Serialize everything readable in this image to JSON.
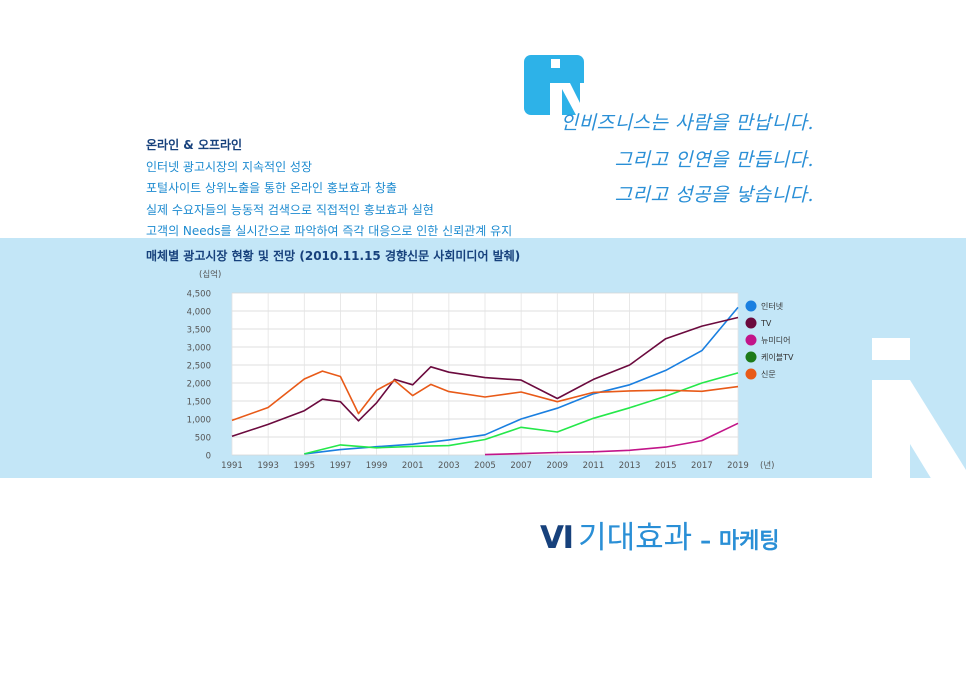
{
  "slogan": [
    "인비즈니스는 사람을 만납니다.",
    "그리고 인연을 만듭니다.",
    "그리고 성공을 낳습니다."
  ],
  "bullets": [
    "온라인 & 오프라인",
    "인터넷 광고시장의 지속적인 성장",
    "포털사이트 상위노출을 통한 온라인 홍보효과 창출",
    "실제 수요자들의 능동적 검색으로 직접적인 홍보효과 실현",
    "고객의 Needs를 실시간으로 파악하여 즉각 대응으로 인한 신뢰관계 유지"
  ],
  "footer": {
    "number": "Ⅵ",
    "title": "기대효과",
    "subtitle": "– 마케팅"
  },
  "colors": {
    "brand_blue": "#2a8fd6",
    "navy": "#17417c",
    "band": "#c3e6f7"
  },
  "chart_data": {
    "type": "line",
    "title": "매체별 광고시장 현황 및 전망 (2010.11.15 경향신문 사회미디어 발췌)",
    "unit_label": "(십억)",
    "x_unit_label": "(년)",
    "x_ticks": [
      1991,
      1993,
      1995,
      1997,
      1999,
      2001,
      2003,
      2005,
      2007,
      2009,
      2011,
      2013,
      2015,
      2017,
      2019
    ],
    "y_ticks": [
      0,
      500,
      1000,
      1500,
      2000,
      2500,
      3000,
      3500,
      4000,
      4500
    ],
    "y_tick_labels": [
      "0",
      "500",
      "1,000",
      "1,500",
      "2,000",
      "2,500",
      "3,000",
      "3,500",
      "4,000",
      "4,500"
    ],
    "xlim": [
      1991,
      2019
    ],
    "ylim": [
      0,
      4500
    ],
    "grid": true,
    "legend_position": "right",
    "series": [
      {
        "name": "인터넷",
        "color": "#1a7fe0",
        "points": [
          [
            1995,
            30
          ],
          [
            1997,
            150
          ],
          [
            1999,
            230
          ],
          [
            2001,
            300
          ],
          [
            2003,
            420
          ],
          [
            2005,
            560
          ],
          [
            2007,
            1000
          ],
          [
            2009,
            1300
          ],
          [
            2011,
            1700
          ],
          [
            2013,
            1950
          ],
          [
            2015,
            2350
          ],
          [
            2017,
            2900
          ],
          [
            2019,
            4100
          ]
        ]
      },
      {
        "name": "TV",
        "color": "#6b0a3e",
        "points": [
          [
            1991,
            520
          ],
          [
            1993,
            850
          ],
          [
            1995,
            1230
          ],
          [
            1996,
            1550
          ],
          [
            1997,
            1480
          ],
          [
            1998,
            950
          ],
          [
            1999,
            1450
          ],
          [
            2000,
            2100
          ],
          [
            2001,
            1950
          ],
          [
            2002,
            2450
          ],
          [
            2003,
            2300
          ],
          [
            2005,
            2150
          ],
          [
            2007,
            2080
          ],
          [
            2009,
            1570
          ],
          [
            2011,
            2100
          ],
          [
            2013,
            2500
          ],
          [
            2015,
            3230
          ],
          [
            2017,
            3580
          ],
          [
            2019,
            3820
          ]
        ]
      },
      {
        "name": "뉴미디어",
        "color": "#c21589",
        "points": [
          [
            2005,
            10
          ],
          [
            2007,
            40
          ],
          [
            2009,
            70
          ],
          [
            2011,
            90
          ],
          [
            2013,
            130
          ],
          [
            2015,
            220
          ],
          [
            2017,
            400
          ],
          [
            2019,
            880
          ]
        ]
      },
      {
        "name": "케이블TV",
        "color": "#1d7a18",
        "line_color": "#25e84a",
        "points": [
          [
            1995,
            30
          ],
          [
            1997,
            280
          ],
          [
            1999,
            200
          ],
          [
            2001,
            240
          ],
          [
            2003,
            260
          ],
          [
            2005,
            430
          ],
          [
            2007,
            770
          ],
          [
            2009,
            640
          ],
          [
            2011,
            1020
          ],
          [
            2013,
            1310
          ],
          [
            2015,
            1630
          ],
          [
            2017,
            2000
          ],
          [
            2019,
            2280
          ]
        ]
      },
      {
        "name": "신문",
        "color": "#e85a18",
        "points": [
          [
            1991,
            960
          ],
          [
            1993,
            1320
          ],
          [
            1995,
            2110
          ],
          [
            1996,
            2330
          ],
          [
            1997,
            2180
          ],
          [
            1998,
            1150
          ],
          [
            1999,
            1800
          ],
          [
            2000,
            2070
          ],
          [
            2001,
            1650
          ],
          [
            2002,
            1960
          ],
          [
            2003,
            1760
          ],
          [
            2005,
            1610
          ],
          [
            2007,
            1750
          ],
          [
            2009,
            1480
          ],
          [
            2011,
            1740
          ],
          [
            2013,
            1780
          ],
          [
            2015,
            1800
          ],
          [
            2017,
            1770
          ],
          [
            2019,
            1900
          ]
        ]
      }
    ]
  }
}
